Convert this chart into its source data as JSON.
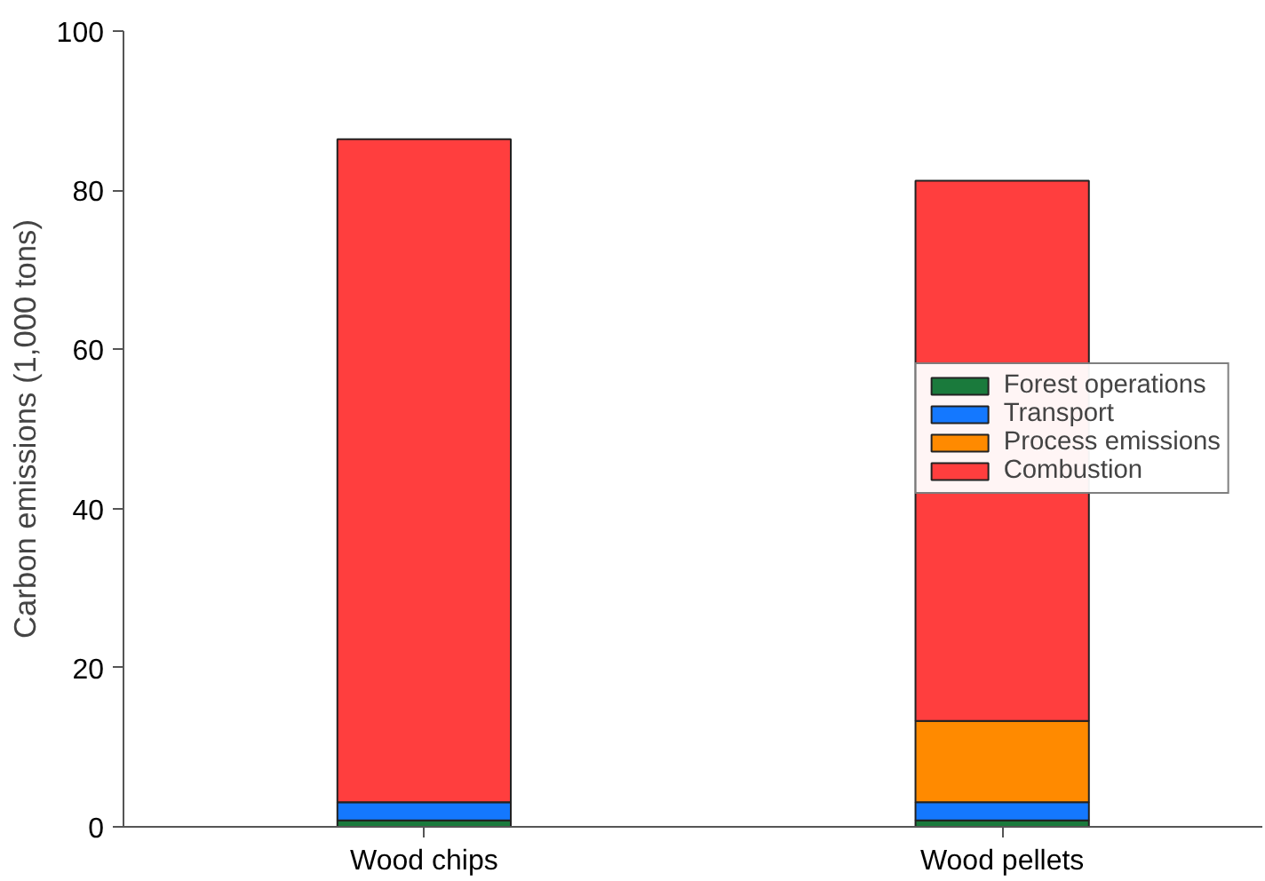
{
  "chart_data": {
    "type": "bar",
    "stacked": true,
    "ylabel": "Carbon emissions (1,000 tons)",
    "categories": [
      "Wood chips",
      "Wood pellets"
    ],
    "series": [
      {
        "name": "Forest operations",
        "color": "#1a7a3c",
        "values": [
          0.8,
          0.8
        ]
      },
      {
        "name": "Transport",
        "color": "#1478ff",
        "values": [
          2.3,
          2.3
        ]
      },
      {
        "name": "Process emissions",
        "color": "#ff8a00",
        "values": [
          0,
          10.2
        ]
      },
      {
        "name": "Combustion",
        "color": "#ff3e3e",
        "values": [
          83.3,
          67.9
        ]
      }
    ],
    "ylim": [
      0,
      100
    ],
    "yticks": [
      0,
      20,
      40,
      60,
      80,
      100
    ],
    "grid": false,
    "legend": "right"
  }
}
